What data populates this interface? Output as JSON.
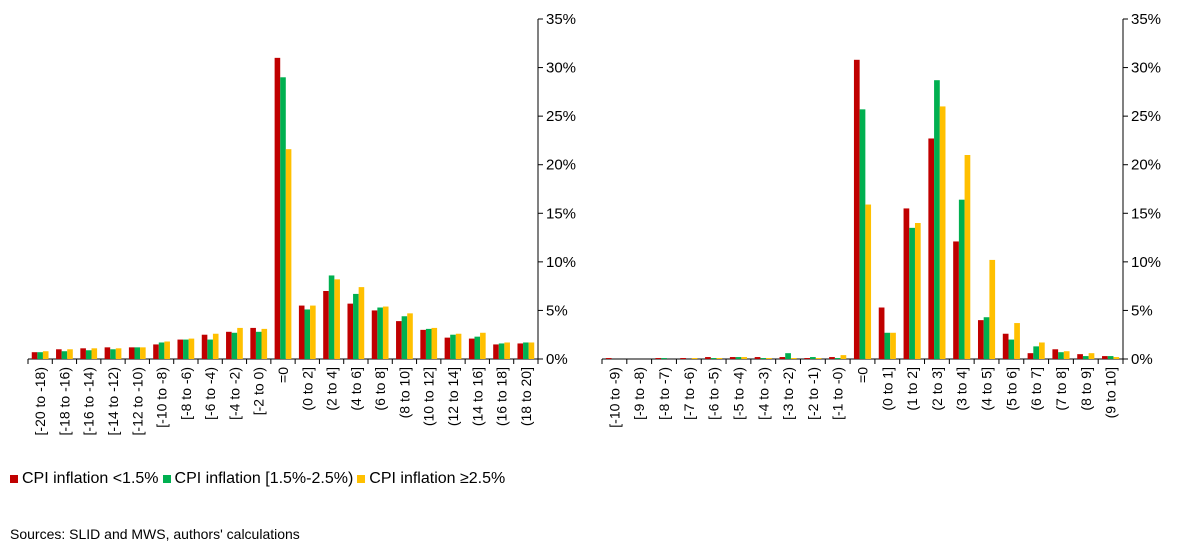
{
  "colors": {
    "s1": "#C00000",
    "s2": "#00B050",
    "s3": "#FFC000"
  },
  "legend": [
    "CPI inflation <1.5%",
    "CPI inflation [1.5%-2.5%)",
    "CPI inflation ≥2.5%"
  ],
  "source": "Sources: SLID and MWS, authors' calculations",
  "chart_data": [
    {
      "type": "bar",
      "ylim": [
        0,
        35
      ],
      "yticks": [
        "0%",
        "5%",
        "10%",
        "15%",
        "20%",
        "25%",
        "30%",
        "35%"
      ],
      "categories": [
        "[-20 to -18)",
        "[-18 to -16)",
        "[-16 to -14)",
        "[-14 to -12)",
        "[-12 to -10)",
        "[-10 to -8)",
        "[-8 to -6)",
        "[-6 to -4)",
        "[-4 to -2)",
        "[-2 to 0)",
        "=0",
        "(0 to 2]",
        "(2 to 4]",
        "(4 to 6]",
        "(6 to 8]",
        "(8 to 10]",
        "(10 to 12]",
        "(12 to 14]",
        "(14 to 16]",
        "(16 to 18]",
        "(18 to 20]"
      ],
      "series": [
        {
          "name": "CPI inflation <1.5%",
          "values": [
            0.7,
            1.0,
            1.1,
            1.2,
            1.2,
            1.5,
            2.0,
            2.5,
            2.8,
            3.2,
            31.0,
            5.5,
            7.0,
            5.7,
            5.0,
            3.9,
            3.0,
            2.2,
            2.1,
            1.5,
            1.6
          ]
        },
        {
          "name": "CPI inflation [1.5%-2.5%)",
          "values": [
            0.7,
            0.8,
            0.9,
            1.0,
            1.2,
            1.7,
            2.0,
            2.0,
            2.7,
            2.8,
            29.0,
            5.1,
            8.6,
            6.7,
            5.3,
            4.4,
            3.1,
            2.5,
            2.3,
            1.6,
            1.7
          ]
        },
        {
          "name": "CPI inflation ≥2.5%",
          "values": [
            0.8,
            1.0,
            1.1,
            1.1,
            1.2,
            1.8,
            2.1,
            2.6,
            3.2,
            3.1,
            21.6,
            5.5,
            8.2,
            7.4,
            5.4,
            4.7,
            3.2,
            2.6,
            2.7,
            1.7,
            1.7
          ]
        }
      ]
    },
    {
      "type": "bar",
      "ylim": [
        0,
        35
      ],
      "yticks": [
        "0%",
        "5%",
        "10%",
        "15%",
        "20%",
        "25%",
        "30%",
        "35%"
      ],
      "categories": [
        "[-10 to -9)",
        "[-9 to -8)",
        "[-8 to -7)",
        "[-7 to -6)",
        "[-6 to -5)",
        "[-5 to -4)",
        "[-4 to -3)",
        "[-3 to -2)",
        "[-2 to -1)",
        "[-1 to -0)",
        "=0",
        "(0 to 1]",
        "(1 to 2]",
        "(2 to 3]",
        "(3 to 4]",
        "(4 to 5]",
        "(5 to 6]",
        "(6 to 7]",
        "(7 to 8]",
        "(8 to 9]",
        "(9 to 10]"
      ],
      "series": [
        {
          "name": "CPI inflation <1.5%",
          "values": [
            0.1,
            0.0,
            0.1,
            0.1,
            0.2,
            0.2,
            0.2,
            0.2,
            0.1,
            0.2,
            30.8,
            5.3,
            15.5,
            22.7,
            12.1,
            4.0,
            2.6,
            0.6,
            1.0,
            0.5,
            0.3
          ]
        },
        {
          "name": "CPI inflation [1.5%-2.5%)",
          "values": [
            0.0,
            0.0,
            0.1,
            0.0,
            0.1,
            0.2,
            0.1,
            0.6,
            0.2,
            0.1,
            25.7,
            2.7,
            13.5,
            28.7,
            16.4,
            4.3,
            2.0,
            1.3,
            0.7,
            0.3,
            0.3
          ]
        },
        {
          "name": "CPI inflation ≥2.5%",
          "values": [
            0.0,
            0.0,
            0.0,
            0.1,
            0.1,
            0.2,
            0.1,
            0.1,
            0.1,
            0.4,
            15.9,
            2.7,
            14.0,
            26.0,
            21.0,
            10.2,
            3.7,
            1.7,
            0.8,
            0.6,
            0.2
          ]
        }
      ]
    }
  ]
}
